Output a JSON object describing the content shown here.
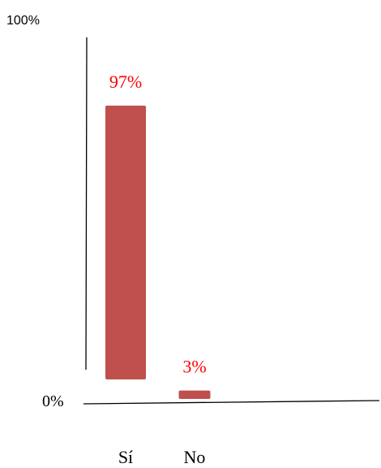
{
  "chart_data": {
    "type": "bar",
    "categories": [
      "Sí",
      "No"
    ],
    "values": [
      97,
      3
    ],
    "data_labels": [
      "97%",
      "3%"
    ],
    "title": "",
    "xlabel": "",
    "ylabel": "",
    "ylim": [
      0,
      100
    ],
    "y_tick_labels": {
      "top": "100%",
      "bottom": "0%"
    },
    "grid": false,
    "legend": "none",
    "colors": {
      "bar": "#c0504d",
      "data_label": "#ff0000",
      "axis": "#000000",
      "text": "#000000"
    }
  }
}
